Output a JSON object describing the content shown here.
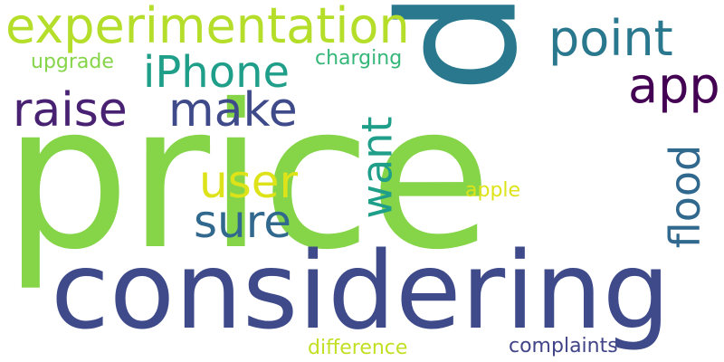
{
  "words": [
    {
      "id": "price",
      "text": "price",
      "color": "#86d549"
    },
    {
      "id": "considering",
      "text": "considering",
      "color": "#3e4a89"
    },
    {
      "id": "p",
      "text": "p",
      "color": "#2a788e"
    },
    {
      "id": "experimentation",
      "text": "experimentation",
      "color": "#b5de2b"
    },
    {
      "id": "iphone",
      "text": "iPhone",
      "color": "#1f9e89"
    },
    {
      "id": "point",
      "text": "point",
      "color": "#2a788e"
    },
    {
      "id": "app",
      "text": "app",
      "color": "#440154"
    },
    {
      "id": "raise",
      "text": "raise",
      "color": "#482173"
    },
    {
      "id": "make",
      "text": "make",
      "color": "#3e4a89"
    },
    {
      "id": "upgrade",
      "text": "upgrade",
      "color": "#86d549"
    },
    {
      "id": "charging",
      "text": "charging",
      "color": "#35b779"
    },
    {
      "id": "user",
      "text": "user",
      "color": "#dde318"
    },
    {
      "id": "sure",
      "text": "sure",
      "color": "#31688e"
    },
    {
      "id": "want",
      "text": "want",
      "color": "#1f9e89"
    },
    {
      "id": "flood",
      "text": "flood",
      "color": "#31688e"
    },
    {
      "id": "apple",
      "text": "apple",
      "color": "#dde318"
    },
    {
      "id": "difference",
      "text": "difference",
      "color": "#c2df23"
    },
    {
      "id": "complaints",
      "text": "complaints",
      "color": "#414487"
    }
  ]
}
